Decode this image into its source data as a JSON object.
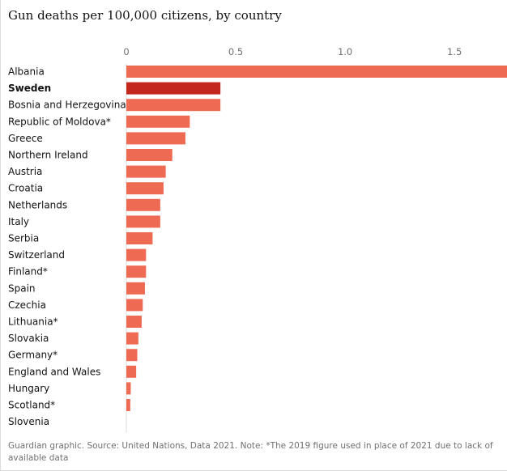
{
  "chart_data": {
    "type": "bar",
    "title": "Gun deaths per 100,000 citizens, by country",
    "orientation": "horizontal",
    "categories": [
      "Albania",
      "Sweden",
      "Bosnia and Herzegovina",
      "Republic of Moldova*",
      "Greece",
      "Northern Ireland",
      "Austria",
      "Croatia",
      "Netherlands",
      "Italy",
      "Serbia",
      "Switzerland",
      "Finland*",
      "Spain",
      "Czechia",
      "Lithuania*",
      "Slovakia",
      "Germany*",
      "England and Wales",
      "Hungary",
      "Scotland*",
      "Slovenia"
    ],
    "values": [
      1.76,
      0.43,
      0.43,
      0.29,
      0.27,
      0.21,
      0.18,
      0.17,
      0.155,
      0.155,
      0.12,
      0.09,
      0.09,
      0.085,
      0.075,
      0.07,
      0.055,
      0.05,
      0.045,
      0.02,
      0.018,
      0
    ],
    "highlight": "Sweden",
    "xticks": [
      0,
      0.5,
      1.0,
      1.5
    ],
    "xtick_labels": [
      "0",
      "0.5",
      "1.0",
      "1.5"
    ],
    "xlim": [
      0,
      1.74
    ],
    "xlabel": "",
    "ylabel": "",
    "grid": false,
    "colors": {
      "bar": "#ee6a53",
      "highlight": "#c4281d",
      "zero_line": "#dcdcdc",
      "label": "#121212",
      "tick_label": "#707070"
    }
  },
  "footnote": "Guardian graphic. Source: United Nations, Data 2021. Note: *The 2019 figure used in place of 2021 due to lack of available data"
}
